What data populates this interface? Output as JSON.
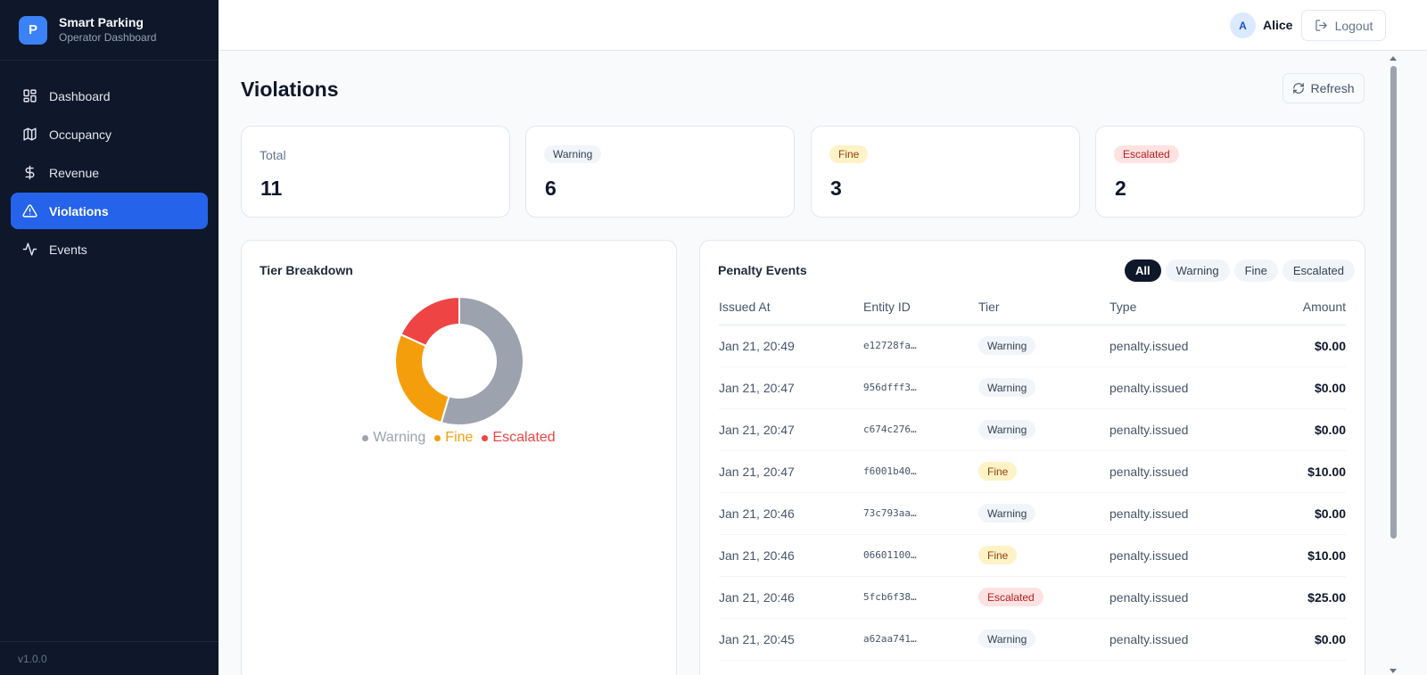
{
  "brand": {
    "logo_letter": "P",
    "name": "Smart Parking",
    "subtitle": "Operator Dashboard"
  },
  "nav": [
    {
      "label": "Dashboard",
      "icon": "grid-icon",
      "active": false
    },
    {
      "label": "Occupancy",
      "icon": "map-icon",
      "active": false
    },
    {
      "label": "Revenue",
      "icon": "dollar-icon",
      "active": false
    },
    {
      "label": "Violations",
      "icon": "warning-triangle-icon",
      "active": true
    },
    {
      "label": "Events",
      "icon": "activity-icon",
      "active": false
    }
  ],
  "version": "v1.0.0",
  "user": {
    "initial": "A",
    "name": "Alice",
    "logout_label": "Logout"
  },
  "page": {
    "title": "Violations",
    "refresh_label": "Refresh"
  },
  "stats": {
    "total": {
      "label": "Total",
      "value": "11"
    },
    "warning": {
      "label": "Warning",
      "value": "6"
    },
    "fine": {
      "label": "Fine",
      "value": "3"
    },
    "escalated": {
      "label": "Escalated",
      "value": "2"
    }
  },
  "breakdown": {
    "title": "Tier Breakdown"
  },
  "chart_data": {
    "type": "pie",
    "title": "Tier Breakdown",
    "categories": [
      "Warning",
      "Fine",
      "Escalated"
    ],
    "values": [
      6,
      3,
      2
    ],
    "colors": [
      "#9ca3af",
      "#f59e0b",
      "#ef4444"
    ],
    "legend": "bottom"
  },
  "events": {
    "title": "Penalty Events",
    "filters": [
      "All",
      "Warning",
      "Fine",
      "Escalated"
    ],
    "active_filter": "All",
    "columns": [
      "Issued At",
      "Entity ID",
      "Tier",
      "Type",
      "Amount"
    ],
    "rows": [
      {
        "issued_at": "Jan 21, 20:49",
        "entity_id": "e12728fa…",
        "tier": "Warning",
        "type": "penalty.issued",
        "amount": "$0.00"
      },
      {
        "issued_at": "Jan 21, 20:47",
        "entity_id": "956dfff3…",
        "tier": "Warning",
        "type": "penalty.issued",
        "amount": "$0.00"
      },
      {
        "issued_at": "Jan 21, 20:47",
        "entity_id": "c674c276…",
        "tier": "Warning",
        "type": "penalty.issued",
        "amount": "$0.00"
      },
      {
        "issued_at": "Jan 21, 20:47",
        "entity_id": "f6001b40…",
        "tier": "Fine",
        "type": "penalty.issued",
        "amount": "$10.00"
      },
      {
        "issued_at": "Jan 21, 20:46",
        "entity_id": "73c793aa…",
        "tier": "Warning",
        "type": "penalty.issued",
        "amount": "$0.00"
      },
      {
        "issued_at": "Jan 21, 20:46",
        "entity_id": "06601100…",
        "tier": "Fine",
        "type": "penalty.issued",
        "amount": "$10.00"
      },
      {
        "issued_at": "Jan 21, 20:46",
        "entity_id": "5fcb6f38…",
        "tier": "Escalated",
        "type": "penalty.issued",
        "amount": "$25.00"
      },
      {
        "issued_at": "Jan 21, 20:45",
        "entity_id": "a62aa741…",
        "tier": "Warning",
        "type": "penalty.issued",
        "amount": "$0.00"
      }
    ]
  }
}
